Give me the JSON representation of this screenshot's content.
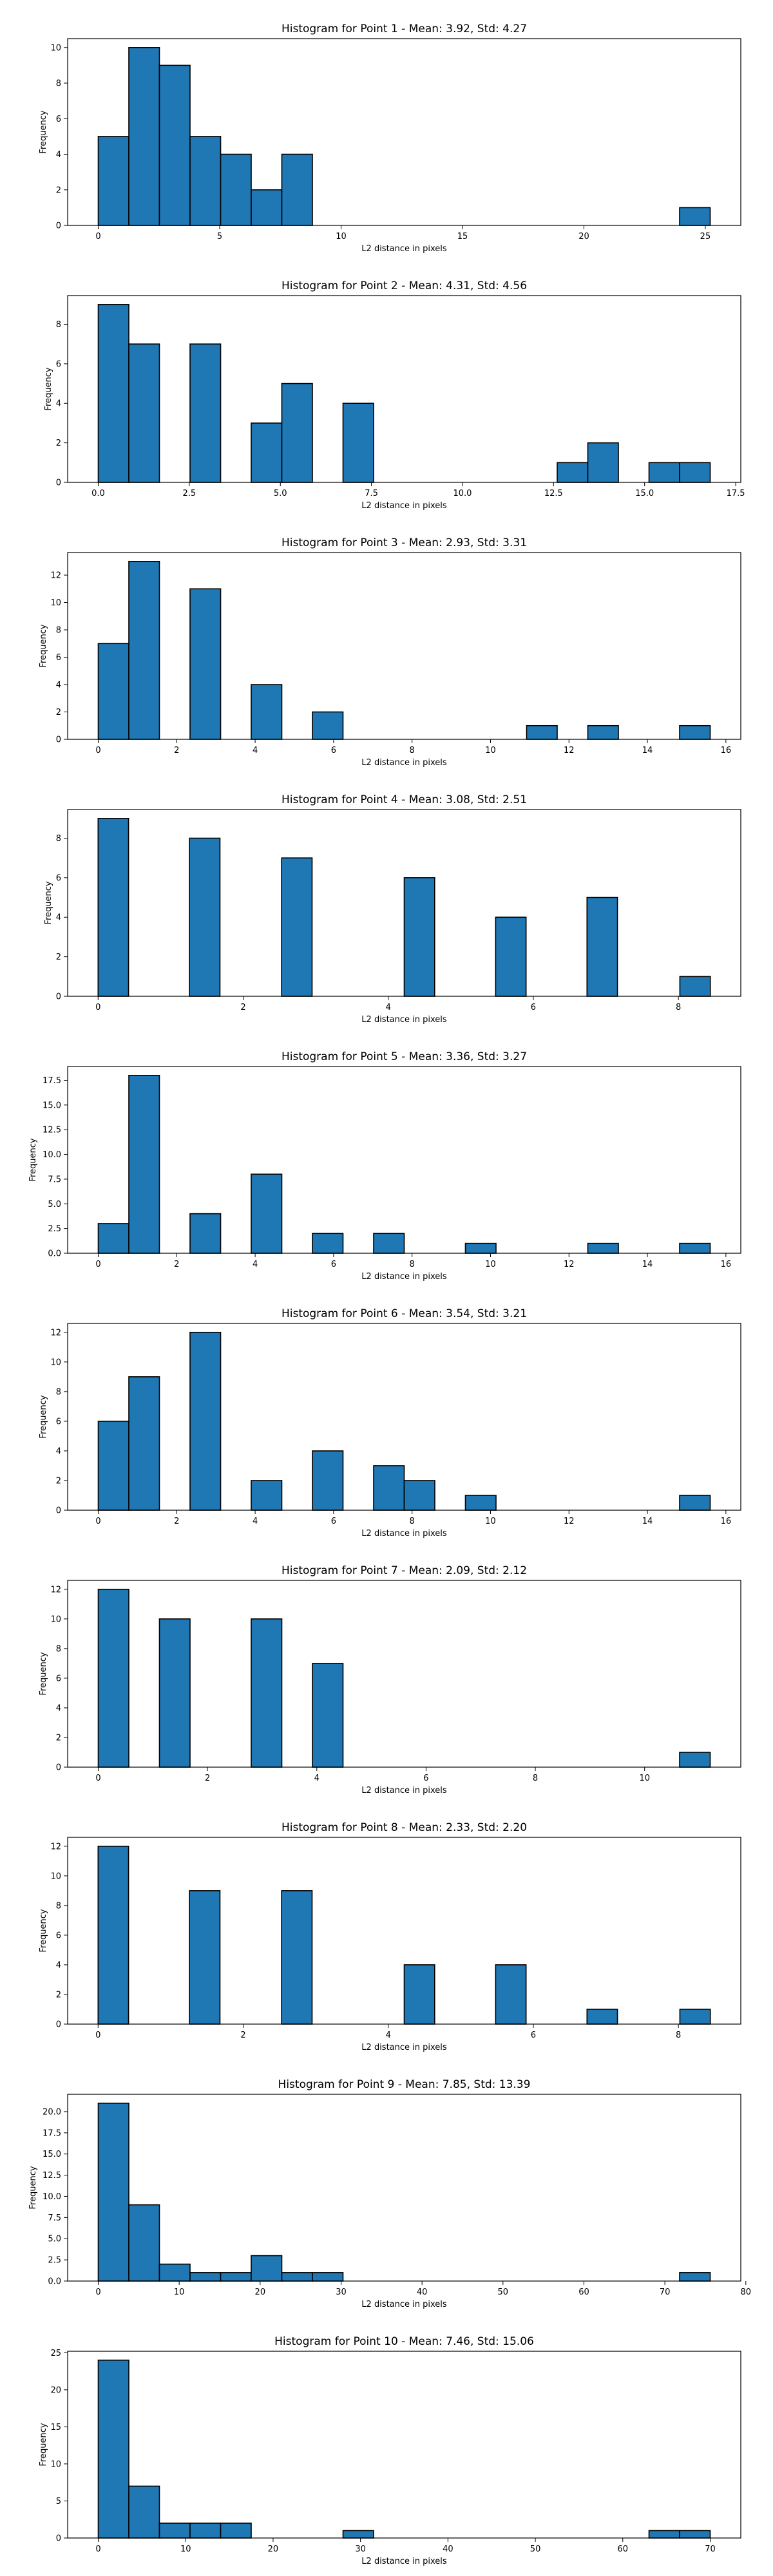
{
  "chart_data": [
    {
      "type": "bar",
      "title": "Histogram for Point 1 - Mean: 3.92, Std: 4.27",
      "xlabel": "L2 distance in pixels",
      "ylabel": "Frequency",
      "xlim": [
        -1.26,
        26.46
      ],
      "ylim": [
        0,
        10.5
      ],
      "xticks": [
        0,
        5,
        10,
        15,
        20,
        25
      ],
      "xtick_labels": [
        "0",
        "5",
        "10",
        "15",
        "20",
        "25"
      ],
      "yticks": [
        0,
        2,
        4,
        6,
        8,
        10
      ],
      "ytick_labels": [
        "0",
        "2",
        "4",
        "6",
        "8",
        "10"
      ],
      "bins": [
        {
          "x0": 0.0,
          "x1": 1.26,
          "count": 5
        },
        {
          "x0": 1.26,
          "x1": 2.52,
          "count": 10
        },
        {
          "x0": 2.52,
          "x1": 3.78,
          "count": 9
        },
        {
          "x0": 3.78,
          "x1": 5.04,
          "count": 5
        },
        {
          "x0": 5.04,
          "x1": 6.3,
          "count": 4
        },
        {
          "x0": 6.3,
          "x1": 7.56,
          "count": 2
        },
        {
          "x0": 7.56,
          "x1": 8.82,
          "count": 4
        },
        {
          "x0": 23.94,
          "x1": 25.2,
          "count": 1
        }
      ]
    },
    {
      "type": "bar",
      "title": "Histogram for Point 2 - Mean: 4.31, Std: 4.56",
      "xlabel": "L2 distance in pixels",
      "ylabel": "Frequency",
      "xlim": [
        -0.84,
        17.64
      ],
      "ylim": [
        0,
        9.45
      ],
      "xticks": [
        0,
        2.5,
        5,
        7.5,
        10,
        12.5,
        15,
        17.5
      ],
      "xtick_labels": [
        "0.0",
        "2.5",
        "5.0",
        "7.5",
        "10.0",
        "12.5",
        "15.0",
        "17.5"
      ],
      "yticks": [
        0,
        2,
        4,
        6,
        8
      ],
      "ytick_labels": [
        "0",
        "2",
        "4",
        "6",
        "8"
      ],
      "bins": [
        {
          "x0": 0.0,
          "x1": 0.84,
          "count": 9
        },
        {
          "x0": 0.84,
          "x1": 1.68,
          "count": 7
        },
        {
          "x0": 2.52,
          "x1": 3.36,
          "count": 7
        },
        {
          "x0": 4.2,
          "x1": 5.04,
          "count": 3
        },
        {
          "x0": 5.04,
          "x1": 5.88,
          "count": 5
        },
        {
          "x0": 6.72,
          "x1": 7.56,
          "count": 4
        },
        {
          "x0": 12.6,
          "x1": 13.44,
          "count": 1
        },
        {
          "x0": 13.44,
          "x1": 14.28,
          "count": 2
        },
        {
          "x0": 15.12,
          "x1": 15.96,
          "count": 1
        },
        {
          "x0": 15.96,
          "x1": 16.8,
          "count": 1
        }
      ]
    },
    {
      "type": "bar",
      "title": "Histogram for Point 3 - Mean: 2.93, Std: 3.31",
      "xlabel": "L2 distance in pixels",
      "ylabel": "Frequency",
      "xlim": [
        -0.78,
        16.38
      ],
      "ylim": [
        0,
        13.65
      ],
      "xticks": [
        0,
        2,
        4,
        6,
        8,
        10,
        12,
        14,
        16
      ],
      "xtick_labels": [
        "0",
        "2",
        "4",
        "6",
        "8",
        "10",
        "12",
        "14",
        "16"
      ],
      "yticks": [
        0,
        2,
        4,
        6,
        8,
        10,
        12
      ],
      "ytick_labels": [
        "0",
        "2",
        "4",
        "6",
        "8",
        "10",
        "12"
      ],
      "bins": [
        {
          "x0": 0.0,
          "x1": 0.78,
          "count": 7
        },
        {
          "x0": 0.78,
          "x1": 1.56,
          "count": 13
        },
        {
          "x0": 2.34,
          "x1": 3.12,
          "count": 11
        },
        {
          "x0": 3.9,
          "x1": 4.68,
          "count": 4
        },
        {
          "x0": 5.46,
          "x1": 6.24,
          "count": 2
        },
        {
          "x0": 10.92,
          "x1": 11.7,
          "count": 1
        },
        {
          "x0": 12.48,
          "x1": 13.26,
          "count": 1
        },
        {
          "x0": 14.82,
          "x1": 15.6,
          "count": 1
        }
      ]
    },
    {
      "type": "bar",
      "title": "Histogram for Point 4 - Mean: 3.08, Std: 2.51",
      "xlabel": "L2 distance in pixels",
      "ylabel": "Frequency",
      "xlim": [
        -0.42,
        8.86
      ],
      "ylim": [
        0,
        9.45
      ],
      "xticks": [
        0,
        2,
        4,
        6,
        8
      ],
      "xtick_labels": [
        "0",
        "2",
        "4",
        "6",
        "8"
      ],
      "yticks": [
        0,
        2,
        4,
        6,
        8
      ],
      "ytick_labels": [
        "0",
        "2",
        "4",
        "6",
        "8"
      ],
      "bins": [
        {
          "x0": 0.0,
          "x1": 0.42,
          "count": 9
        },
        {
          "x0": 1.26,
          "x1": 1.68,
          "count": 8
        },
        {
          "x0": 2.53,
          "x1": 2.95,
          "count": 7
        },
        {
          "x0": 4.22,
          "x1": 4.64,
          "count": 6
        },
        {
          "x0": 5.48,
          "x1": 5.9,
          "count": 4
        },
        {
          "x0": 6.74,
          "x1": 7.16,
          "count": 5
        },
        {
          "x0": 8.02,
          "x1": 8.44,
          "count": 1
        }
      ]
    },
    {
      "type": "bar",
      "title": "Histogram for Point 5 - Mean: 3.36, Std: 3.27",
      "xlabel": "L2 distance in pixels",
      "ylabel": "Frequency",
      "xlim": [
        -0.78,
        16.38
      ],
      "ylim": [
        0,
        18.9
      ],
      "xticks": [
        0,
        2,
        4,
        6,
        8,
        10,
        12,
        14,
        16
      ],
      "xtick_labels": [
        "0",
        "2",
        "4",
        "6",
        "8",
        "10",
        "12",
        "14",
        "16"
      ],
      "yticks": [
        0,
        2.5,
        5,
        7.5,
        10,
        12.5,
        15,
        17.5
      ],
      "ytick_labels": [
        "0.0",
        "2.5",
        "5.0",
        "7.5",
        "10.0",
        "12.5",
        "15.0",
        "17.5"
      ],
      "bins": [
        {
          "x0": 0.0,
          "x1": 0.78,
          "count": 3
        },
        {
          "x0": 0.78,
          "x1": 1.56,
          "count": 18
        },
        {
          "x0": 2.34,
          "x1": 3.12,
          "count": 4
        },
        {
          "x0": 3.9,
          "x1": 4.68,
          "count": 8
        },
        {
          "x0": 5.46,
          "x1": 6.24,
          "count": 2
        },
        {
          "x0": 7.02,
          "x1": 7.8,
          "count": 2
        },
        {
          "x0": 9.36,
          "x1": 10.14,
          "count": 1
        },
        {
          "x0": 12.48,
          "x1": 13.26,
          "count": 1
        },
        {
          "x0": 14.82,
          "x1": 15.6,
          "count": 1
        }
      ]
    },
    {
      "type": "bar",
      "title": "Histogram for Point 6 - Mean: 3.54, Std: 3.21",
      "xlabel": "L2 distance in pixels",
      "ylabel": "Frequency",
      "xlim": [
        -0.78,
        16.38
      ],
      "ylim": [
        0,
        12.6
      ],
      "xticks": [
        0,
        2,
        4,
        6,
        8,
        10,
        12,
        14,
        16
      ],
      "xtick_labels": [
        "0",
        "2",
        "4",
        "6",
        "8",
        "10",
        "12",
        "14",
        "16"
      ],
      "yticks": [
        0,
        2,
        4,
        6,
        8,
        10,
        12
      ],
      "ytick_labels": [
        "0",
        "2",
        "4",
        "6",
        "8",
        "10",
        "12"
      ],
      "bins": [
        {
          "x0": 0.0,
          "x1": 0.78,
          "count": 6
        },
        {
          "x0": 0.78,
          "x1": 1.56,
          "count": 9
        },
        {
          "x0": 2.34,
          "x1": 3.12,
          "count": 12
        },
        {
          "x0": 3.9,
          "x1": 4.68,
          "count": 2
        },
        {
          "x0": 5.46,
          "x1": 6.24,
          "count": 4
        },
        {
          "x0": 7.02,
          "x1": 7.8,
          "count": 3
        },
        {
          "x0": 7.8,
          "x1": 8.58,
          "count": 2
        },
        {
          "x0": 9.36,
          "x1": 10.14,
          "count": 1
        },
        {
          "x0": 14.82,
          "x1": 15.6,
          "count": 1
        }
      ]
    },
    {
      "type": "bar",
      "title": "Histogram for Point 7 - Mean: 2.09, Std: 2.12",
      "xlabel": "L2 distance in pixels",
      "ylabel": "Frequency",
      "xlim": [
        -0.56,
        11.76
      ],
      "ylim": [
        0,
        12.6
      ],
      "xticks": [
        0,
        2,
        4,
        6,
        8,
        10
      ],
      "xtick_labels": [
        "0",
        "2",
        "4",
        "6",
        "8",
        "10"
      ],
      "yticks": [
        0,
        2,
        4,
        6,
        8,
        10,
        12
      ],
      "ytick_labels": [
        "0",
        "2",
        "4",
        "6",
        "8",
        "10",
        "12"
      ],
      "bins": [
        {
          "x0": 0.0,
          "x1": 0.56,
          "count": 12
        },
        {
          "x0": 1.12,
          "x1": 1.68,
          "count": 10
        },
        {
          "x0": 2.8,
          "x1": 3.36,
          "count": 10
        },
        {
          "x0": 3.92,
          "x1": 4.48,
          "count": 7
        },
        {
          "x0": 10.64,
          "x1": 11.2,
          "count": 1
        }
      ]
    },
    {
      "type": "bar",
      "title": "Histogram for Point 8 - Mean: 2.33, Std: 2.20",
      "xlabel": "L2 distance in pixels",
      "ylabel": "Frequency",
      "xlim": [
        -0.42,
        8.86
      ],
      "ylim": [
        0,
        12.6
      ],
      "xticks": [
        0,
        2,
        4,
        6,
        8
      ],
      "xtick_labels": [
        "0",
        "2",
        "4",
        "6",
        "8"
      ],
      "yticks": [
        0,
        2,
        4,
        6,
        8,
        10,
        12
      ],
      "ytick_labels": [
        "0",
        "2",
        "4",
        "6",
        "8",
        "10",
        "12"
      ],
      "bins": [
        {
          "x0": 0.0,
          "x1": 0.42,
          "count": 12
        },
        {
          "x0": 1.26,
          "x1": 1.68,
          "count": 9
        },
        {
          "x0": 2.53,
          "x1": 2.95,
          "count": 9
        },
        {
          "x0": 4.22,
          "x1": 4.64,
          "count": 4
        },
        {
          "x0": 5.48,
          "x1": 5.9,
          "count": 4
        },
        {
          "x0": 6.74,
          "x1": 7.16,
          "count": 1
        },
        {
          "x0": 8.02,
          "x1": 8.44,
          "count": 1
        }
      ]
    },
    {
      "type": "bar",
      "title": "Histogram for Point 9 - Mean: 7.85, Std: 13.39",
      "xlabel": "L2 distance in pixels",
      "ylabel": "Frequency",
      "xlim": [
        -3.78,
        79.38
      ],
      "ylim": [
        0,
        22.05
      ],
      "xticks": [
        0,
        10,
        20,
        30,
        40,
        50,
        60,
        70,
        80
      ],
      "xtick_labels": [
        "0",
        "10",
        "20",
        "30",
        "40",
        "50",
        "60",
        "70",
        "80"
      ],
      "yticks": [
        0,
        2.5,
        5,
        7.5,
        10,
        12.5,
        15,
        17.5,
        20
      ],
      "ytick_labels": [
        "0.0",
        "2.5",
        "5.0",
        "7.5",
        "10.0",
        "12.5",
        "15.0",
        "17.5",
        "20.0"
      ],
      "bins": [
        {
          "x0": 0.0,
          "x1": 3.78,
          "count": 21
        },
        {
          "x0": 3.78,
          "x1": 7.56,
          "count": 9
        },
        {
          "x0": 7.56,
          "x1": 11.34,
          "count": 2
        },
        {
          "x0": 11.34,
          "x1": 15.12,
          "count": 1
        },
        {
          "x0": 15.12,
          "x1": 18.9,
          "count": 1
        },
        {
          "x0": 18.9,
          "x1": 22.68,
          "count": 3
        },
        {
          "x0": 22.68,
          "x1": 26.46,
          "count": 1
        },
        {
          "x0": 26.46,
          "x1": 30.24,
          "count": 1
        },
        {
          "x0": 71.82,
          "x1": 75.6,
          "count": 1
        }
      ]
    },
    {
      "type": "bar",
      "title": "Histogram for Point 10 - Mean: 7.46, Std: 15.06",
      "xlabel": "L2 distance in pixels",
      "ylabel": "Frequency",
      "xlim": [
        -3.5,
        73.5
      ],
      "ylim": [
        0,
        25.2
      ],
      "xticks": [
        0,
        10,
        20,
        30,
        40,
        50,
        60,
        70
      ],
      "xtick_labels": [
        "0",
        "10",
        "20",
        "30",
        "40",
        "50",
        "60",
        "70"
      ],
      "yticks": [
        0,
        5,
        10,
        15,
        20,
        25
      ],
      "ytick_labels": [
        "0",
        "5",
        "10",
        "15",
        "20",
        "25"
      ],
      "bins": [
        {
          "x0": 0.0,
          "x1": 3.5,
          "count": 24
        },
        {
          "x0": 3.5,
          "x1": 7.0,
          "count": 7
        },
        {
          "x0": 7.0,
          "x1": 10.5,
          "count": 2
        },
        {
          "x0": 10.5,
          "x1": 14.0,
          "count": 2
        },
        {
          "x0": 14.0,
          "x1": 17.5,
          "count": 2
        },
        {
          "x0": 28.0,
          "x1": 31.5,
          "count": 1
        },
        {
          "x0": 63.0,
          "x1": 66.5,
          "count": 1
        },
        {
          "x0": 66.5,
          "x1": 70.0,
          "count": 1
        }
      ]
    }
  ],
  "style": {
    "bar_fill": "#1f77b4",
    "bar_edge": "#000000",
    "axis_color": "#000000",
    "background": "#ffffff"
  }
}
